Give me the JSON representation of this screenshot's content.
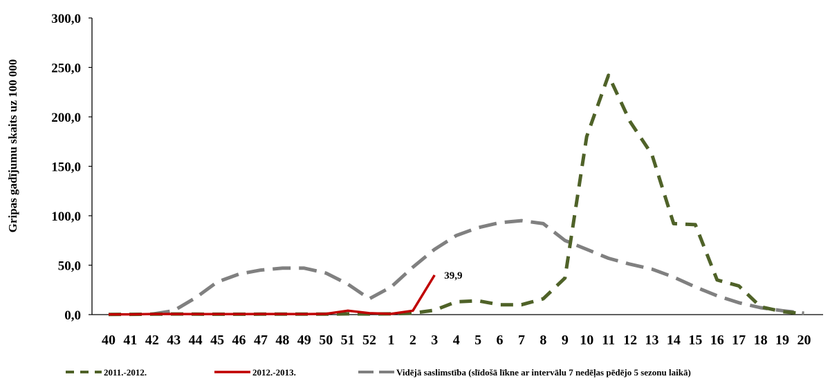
{
  "chart_data": {
    "type": "line",
    "ylabel": "Gripas gadījumu skaits uz 100 000",
    "xlabel": "",
    "ylim": [
      0,
      300
    ],
    "y_ticks": [
      "0,0",
      "50,0",
      "100,0",
      "150,0",
      "200,0",
      "250,0",
      "300,0"
    ],
    "categories": [
      "40",
      "41",
      "42",
      "43",
      "44",
      "45",
      "46",
      "47",
      "48",
      "49",
      "50",
      "51",
      "52",
      "1",
      "2",
      "3",
      "4",
      "5",
      "6",
      "7",
      "8",
      "9",
      "10",
      "11",
      "12",
      "13",
      "14",
      "15",
      "16",
      "17",
      "18",
      "19",
      "20"
    ],
    "grid": false,
    "legend_position": "bottom",
    "series": [
      {
        "name": "2011.-2012.",
        "color": "#4f6228",
        "style": "dashed",
        "values": [
          0.2,
          0.3,
          0.5,
          0.6,
          0.5,
          0.4,
          0.4,
          0.5,
          0.5,
          0.5,
          0.5,
          0.8,
          0.6,
          0.8,
          1.5,
          4.5,
          13,
          14,
          10,
          10,
          16,
          37,
          180,
          242,
          195,
          162,
          92,
          91,
          35,
          29,
          8,
          3,
          1
        ]
      },
      {
        "name": "2012.-2013.",
        "color": "#c00000",
        "style": "solid",
        "values": [
          0.3,
          0.3,
          0.6,
          0.6,
          0.5,
          0.5,
          0.5,
          0.6,
          0.6,
          0.5,
          0.8,
          4.0,
          1.5,
          0.8,
          4.0,
          39.9,
          null,
          null,
          null,
          null,
          null,
          null,
          null,
          null,
          null,
          null,
          null,
          null,
          null,
          null,
          null,
          null,
          null
        ]
      },
      {
        "name": "Vidējā saslimstība (slīdošā līkne ar intervālu 7 nedēļas pēdējo 5 sezonu laikā)",
        "color": "#808080",
        "style": "dashed",
        "values": [
          null,
          null,
          0.5,
          4,
          17,
          33,
          41,
          45,
          47,
          47,
          42,
          31,
          16,
          28,
          48,
          66,
          80,
          88,
          93,
          95,
          92,
          75,
          66,
          57,
          51,
          46,
          38,
          28,
          19,
          12,
          7,
          4,
          1.5
        ]
      }
    ],
    "annotations": [
      {
        "series_index": 1,
        "point_index": 15,
        "text": "39,9"
      }
    ]
  }
}
